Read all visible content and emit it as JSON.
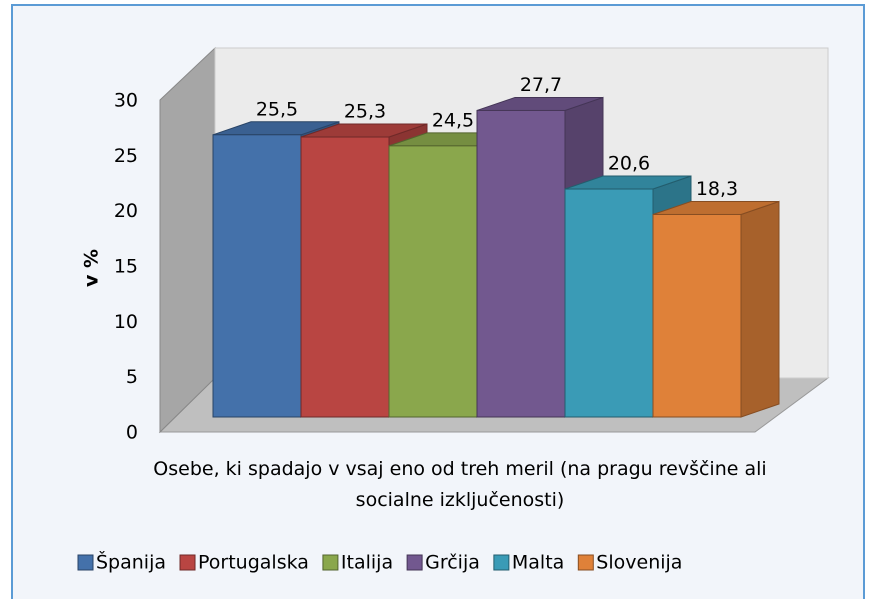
{
  "chart_data": {
    "type": "bar3d",
    "categories": [
      "Osebe, ki spadajo v vsaj eno od treh meril (na pragu revščine ali socialne izključenosti)"
    ],
    "ylabel": "v %",
    "ylim": [
      0,
      30
    ],
    "yticks": [
      0,
      5,
      10,
      15,
      20,
      25,
      30
    ],
    "legend": "bottom",
    "series": [
      {
        "name": "Španija",
        "color": "#4471aa",
        "values": [
          25.5
        ],
        "value_labels": [
          "25,5"
        ]
      },
      {
        "name": "Portugalska",
        "color": "#b94542",
        "values": [
          25.3
        ],
        "value_labels": [
          "25,3"
        ]
      },
      {
        "name": "Italija",
        "color": "#8aa74c",
        "values": [
          24.5
        ],
        "value_labels": [
          "24,5"
        ]
      },
      {
        "name": "Grčija",
        "color": "#72588f",
        "values": [
          27.7
        ],
        "value_labels": [
          "27,7"
        ]
      },
      {
        "name": "Malta",
        "color": "#3a9bb6",
        "values": [
          20.6
        ],
        "value_labels": [
          "20,6"
        ]
      },
      {
        "name": "Slovenija",
        "color": "#df8139",
        "values": [
          18.3
        ],
        "value_labels": [
          "18,3"
        ]
      }
    ]
  }
}
